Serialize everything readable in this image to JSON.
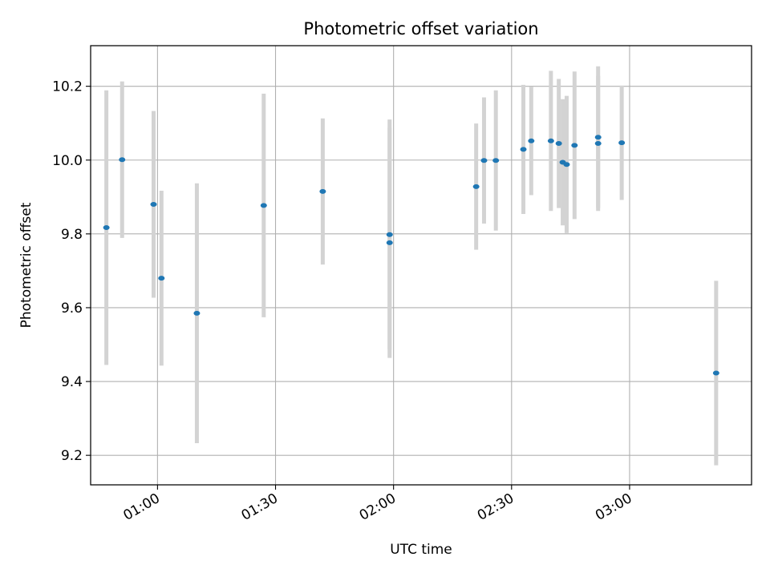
{
  "chart_data": {
    "type": "scatter",
    "title": "Photometric offset variation",
    "xlabel": "UTC time",
    "ylabel": "Photometric offset",
    "x_axis_kind": "time",
    "xlim": [
      "00:43",
      "03:31"
    ],
    "ylim": [
      9.12,
      10.31
    ],
    "xticks": [
      "01:00",
      "01:30",
      "02:00",
      "02:30",
      "03:00"
    ],
    "yticks": [
      9.2,
      9.4,
      9.6,
      9.8,
      10.0,
      10.2
    ],
    "ytick_labels": [
      "9.2",
      "9.4",
      "9.6",
      "9.8",
      "10.0",
      "10.2"
    ],
    "grid": true,
    "colors": {
      "point": "#1f77b4",
      "errorbar": "#d3d3d3",
      "grid": "#b0b0b0"
    },
    "points": [
      {
        "x": "00:47",
        "y": 9.817,
        "yerr": 0.372
      },
      {
        "x": "00:51",
        "y": 10.001,
        "yerr": 0.212
      },
      {
        "x": "00:59",
        "y": 9.88,
        "yerr": 0.253
      },
      {
        "x": "01:01",
        "y": 9.68,
        "yerr": 0.237
      },
      {
        "x": "01:10",
        "y": 9.585,
        "yerr": 0.352
      },
      {
        "x": "01:27",
        "y": 9.877,
        "yerr": 0.303
      },
      {
        "x": "01:42",
        "y": 9.915,
        "yerr": 0.198
      },
      {
        "x": "01:59",
        "y": 9.776,
        "yerr": 0.312
      },
      {
        "x": "01:59",
        "y": 9.798,
        "yerr": 0.312
      },
      {
        "x": "02:21",
        "y": 9.928,
        "yerr": 0.171
      },
      {
        "x": "02:23",
        "y": 9.999,
        "yerr": 0.171
      },
      {
        "x": "02:26",
        "y": 9.999,
        "yerr": 0.19
      },
      {
        "x": "02:33",
        "y": 10.029,
        "yerr": 0.175
      },
      {
        "x": "02:35",
        "y": 10.052,
        "yerr": 0.147
      },
      {
        "x": "02:40",
        "y": 10.052,
        "yerr": 0.19
      },
      {
        "x": "02:42",
        "y": 10.045,
        "yerr": 0.175
      },
      {
        "x": "02:43",
        "y": 9.994,
        "yerr": 0.171
      },
      {
        "x": "02:44",
        "y": 9.988,
        "yerr": 0.186
      },
      {
        "x": "02:46",
        "y": 10.04,
        "yerr": 0.2
      },
      {
        "x": "02:52",
        "y": 10.045,
        "yerr": 0.183
      },
      {
        "x": "02:52",
        "y": 10.062,
        "yerr": 0.192
      },
      {
        "x": "02:58",
        "y": 10.047,
        "yerr": 0.155
      },
      {
        "x": "03:22",
        "y": 9.423,
        "yerr": 0.25
      }
    ]
  }
}
